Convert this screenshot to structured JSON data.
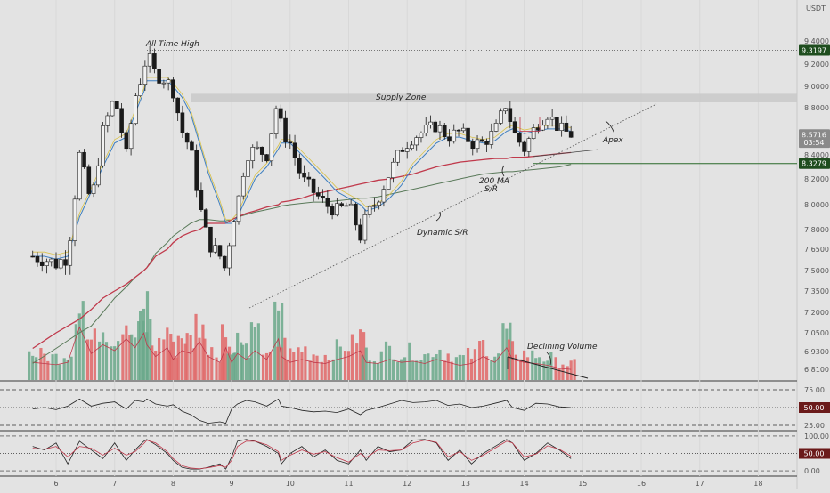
{
  "chart_data": {
    "type": "candlestick",
    "currency": "USDT",
    "x_ticks": [
      "6",
      "7",
      "8",
      "9",
      "10",
      "11",
      "12",
      "13",
      "14",
      "15",
      "16",
      "17",
      "18"
    ],
    "price_axis": {
      "ticks": [
        "9.4000",
        "9.2000",
        "9.0000",
        "8.8000",
        "8.4000",
        "8.2000",
        "8.0000",
        "7.8000",
        "7.6500",
        "7.5000",
        "7.3500",
        "7.2000",
        "7.0500",
        "6.9300",
        "6.8100"
      ],
      "tick_values": [
        9.4,
        9.2,
        9.0,
        8.8,
        8.4,
        8.2,
        8.0,
        7.8,
        7.65,
        7.5,
        7.35,
        7.2,
        7.05,
        6.93,
        6.81
      ],
      "ylim": [
        6.75,
        9.55
      ]
    },
    "badges": [
      {
        "label": "9.3197",
        "value": 9.3197,
        "color": "#1e4d1e"
      },
      {
        "label": "8.5716",
        "value": 8.5716,
        "color": "#8a8a8a"
      },
      {
        "label": "03:54",
        "value": 8.505,
        "color": "#8a8a8a"
      },
      {
        "label": "8.3279",
        "value": 8.3279,
        "color": "#1e4d1e"
      }
    ],
    "annotations": {
      "all_time_high": "All Time High",
      "supply_zone": "Supply Zone",
      "ma200_line1": "200 MA",
      "ma200_line2": "S/R",
      "dynamic_sr": "Dynamic S/R",
      "apex": "Apex",
      "declining_volume": "Declining Volume"
    },
    "levels": {
      "all_time_high": 9.3197,
      "supply_zone": [
        8.85,
        8.93
      ],
      "support": 8.3279
    },
    "price_series": {
      "x": [
        5.6,
        5.8,
        6.0,
        6.2,
        6.4,
        6.6,
        6.8,
        7.0,
        7.2,
        7.35,
        7.5,
        7.55,
        7.7,
        7.9,
        8.0,
        8.15,
        8.3,
        8.45,
        8.6,
        8.8,
        8.9,
        9.0,
        9.1,
        9.25,
        9.4,
        9.6,
        9.8,
        9.85,
        10.0,
        10.2,
        10.4,
        10.6,
        10.8,
        11.0,
        11.2,
        11.3,
        11.5,
        11.7,
        11.9,
        12.1,
        12.3,
        12.5,
        12.7,
        12.9,
        13.1,
        13.3,
        13.5,
        13.7,
        13.8,
        14.0,
        14.2,
        14.4,
        14.6,
        14.8
      ],
      "close": [
        7.6,
        7.58,
        7.55,
        7.6,
        8.4,
        8.0,
        8.6,
        8.9,
        8.4,
        8.9,
        9.15,
        9.3,
        9.1,
        9.05,
        8.95,
        8.6,
        8.45,
        8.0,
        7.7,
        7.6,
        7.5,
        7.85,
        8.0,
        8.4,
        8.45,
        8.4,
        8.9,
        8.6,
        8.5,
        8.2,
        8.1,
        8.0,
        7.95,
        8.0,
        7.75,
        7.9,
        8.05,
        8.25,
        8.45,
        8.55,
        8.6,
        8.65,
        8.55,
        8.6,
        8.5,
        8.5,
        8.6,
        8.85,
        8.6,
        8.45,
        8.65,
        8.75,
        8.62,
        8.5716
      ]
    },
    "indicators": {
      "ema_fast": [
        7.6,
        7.6,
        7.58,
        7.6,
        7.9,
        8.1,
        8.3,
        8.5,
        8.55,
        8.75,
        8.95,
        9.05,
        9.05,
        9.05,
        9.0,
        8.9,
        8.75,
        8.5,
        8.25,
        8.0,
        7.85,
        7.85,
        7.9,
        8.05,
        8.2,
        8.3,
        8.45,
        8.5,
        8.5,
        8.4,
        8.3,
        8.2,
        8.1,
        8.05,
        8.0,
        7.95,
        7.98,
        8.05,
        8.15,
        8.3,
        8.4,
        8.5,
        8.55,
        8.55,
        8.52,
        8.5,
        8.52,
        8.6,
        8.62,
        8.58,
        8.6,
        8.62,
        8.62,
        8.6
      ],
      "ma200": [
        6.95,
        7.0,
        7.05,
        7.1,
        7.15,
        7.22,
        7.3,
        7.35,
        7.4,
        7.45,
        7.5,
        7.52,
        7.6,
        7.65,
        7.7,
        7.75,
        7.78,
        7.8,
        7.85,
        7.85,
        7.85,
        7.88,
        7.9,
        7.93,
        7.95,
        7.98,
        8.0,
        8.02,
        8.03,
        8.05,
        8.08,
        8.1,
        8.12,
        8.14,
        8.16,
        8.17,
        8.19,
        8.2,
        8.22,
        8.24,
        8.27,
        8.3,
        8.32,
        8.34,
        8.35,
        8.36,
        8.37,
        8.37,
        8.38,
        8.38,
        8.39,
        8.4,
        8.41,
        8.42
      ],
      "ma_long": [
        6.85,
        6.9,
        6.95,
        7.0,
        7.05,
        7.1,
        7.2,
        7.3,
        7.38,
        7.45,
        7.5,
        7.52,
        7.62,
        7.7,
        7.75,
        7.8,
        7.85,
        7.88,
        7.88,
        7.87,
        7.87,
        7.88,
        7.9,
        7.92,
        7.94,
        7.96,
        7.98,
        7.99,
        8.0,
        8.01,
        8.02,
        8.02,
        8.03,
        8.04,
        8.05,
        8.05,
        8.06,
        8.08,
        8.1,
        8.12,
        8.14,
        8.16,
        8.18,
        8.2,
        8.22,
        8.24,
        8.25,
        8.26,
        8.26,
        8.27,
        8.28,
        8.29,
        8.3,
        8.32
      ]
    },
    "volume": {
      "values": [
        30,
        28,
        26,
        30,
        90,
        45,
        60,
        50,
        70,
        55,
        80,
        60,
        40,
        55,
        35,
        50,
        45,
        65,
        40,
        30,
        55,
        30,
        45,
        35,
        50,
        35,
        70,
        40,
        30,
        35,
        30,
        28,
        35,
        40,
        50,
        30,
        28,
        35,
        30,
        32,
        28,
        35,
        30,
        25,
        28,
        40,
        30,
        55,
        35,
        30,
        28,
        25,
        20,
        18
      ],
      "up": [
        true,
        false,
        true,
        true,
        true,
        false,
        true,
        true,
        false,
        true,
        true,
        true,
        false,
        false,
        false,
        false,
        false,
        false,
        false,
        false,
        false,
        true,
        true,
        true,
        true,
        false,
        true,
        false,
        false,
        false,
        false,
        false,
        true,
        false,
        false,
        true,
        true,
        true,
        true,
        true,
        true,
        true,
        false,
        true,
        false,
        false,
        true,
        true,
        false,
        false,
        true,
        true,
        false,
        false
      ]
    },
    "rsi": {
      "ticks": [
        "75.00",
        "50.00",
        "25.00"
      ],
      "tick_values": [
        75,
        50,
        25
      ],
      "ylim": [
        20,
        85
      ],
      "badge": "50.00",
      "badge_value": 50,
      "values": [
        48,
        50,
        47,
        52,
        62,
        52,
        56,
        58,
        48,
        60,
        58,
        62,
        55,
        52,
        54,
        45,
        40,
        32,
        28,
        30,
        28,
        48,
        55,
        60,
        58,
        52,
        62,
        52,
        50,
        46,
        44,
        45,
        43,
        48,
        40,
        46,
        50,
        55,
        60,
        57,
        58,
        60,
        53,
        55,
        50,
        52,
        56,
        60,
        50,
        46,
        56,
        55,
        51,
        50
      ]
    },
    "stoch": {
      "ticks": [
        "100.00",
        "50.00",
        "0.00"
      ],
      "tick_values": [
        100,
        50,
        0
      ],
      "ylim": [
        -10,
        110
      ],
      "badge": "50.00",
      "badge_value": 50,
      "k": [
        70,
        60,
        80,
        20,
        85,
        60,
        35,
        80,
        30,
        60,
        85,
        90,
        75,
        50,
        30,
        10,
        5,
        5,
        10,
        20,
        5,
        40,
        85,
        90,
        85,
        70,
        50,
        20,
        50,
        70,
        40,
        60,
        30,
        20,
        60,
        30,
        70,
        55,
        60,
        88,
        90,
        80,
        30,
        60,
        20,
        50,
        70,
        90,
        80,
        30,
        50,
        80,
        60,
        35
      ],
      "d": [
        65,
        62,
        70,
        40,
        70,
        65,
        45,
        65,
        45,
        55,
        78,
        88,
        80,
        55,
        35,
        15,
        8,
        6,
        9,
        15,
        10,
        30,
        70,
        85,
        85,
        75,
        55,
        30,
        45,
        60,
        48,
        55,
        38,
        25,
        50,
        38,
        60,
        58,
        60,
        80,
        88,
        82,
        40,
        55,
        30,
        45,
        65,
        85,
        80,
        40,
        48,
        72,
        62,
        42
      ]
    }
  }
}
